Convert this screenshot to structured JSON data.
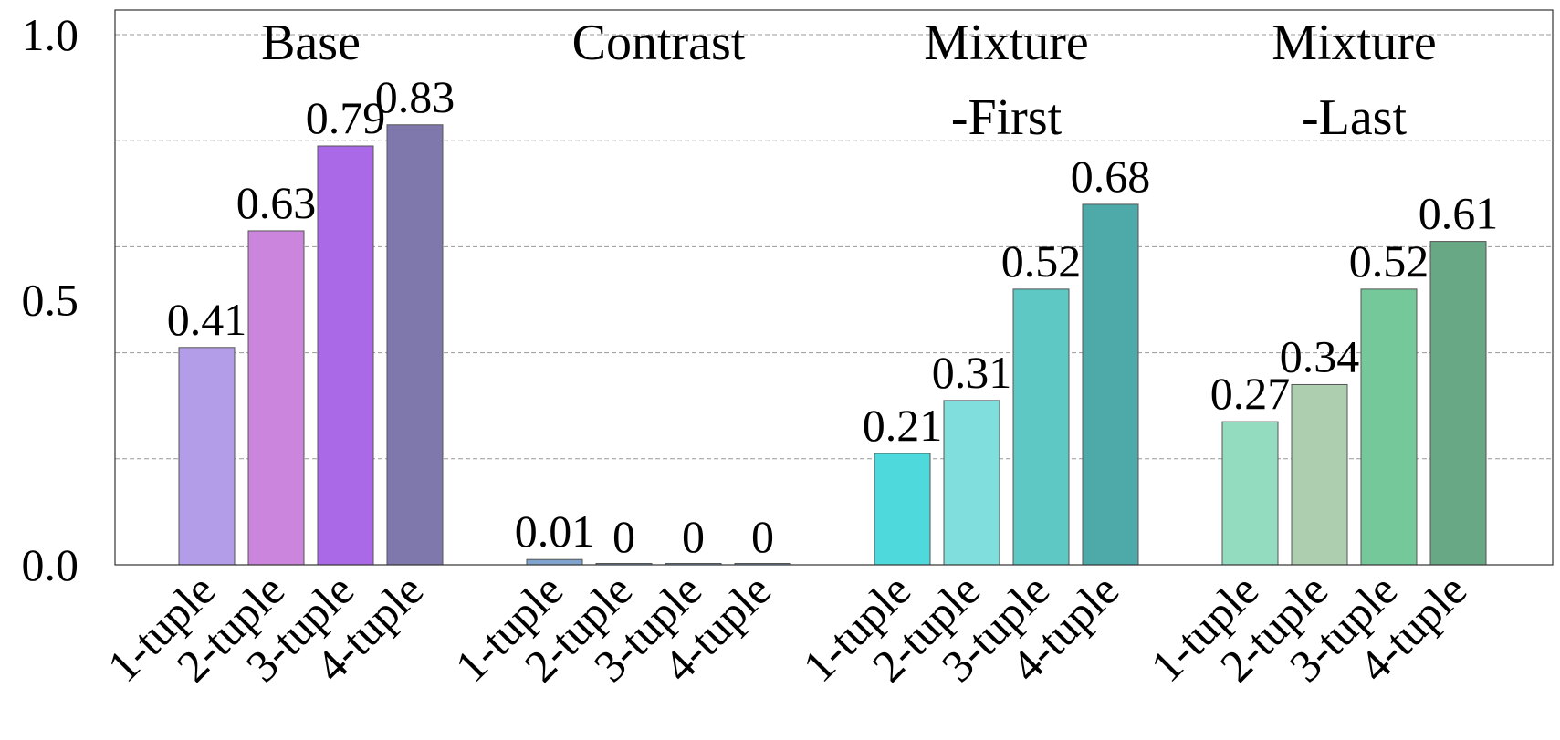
{
  "chart_data": {
    "type": "bar",
    "ylim": [
      0,
      1.05
    ],
    "yticks": [
      {
        "value": 0.0,
        "label": "0.0"
      },
      {
        "value": 0.5,
        "label": "0.5"
      },
      {
        "value": 1.0,
        "label": "1.0"
      }
    ],
    "gridlines": [
      0.2,
      0.4,
      0.6,
      0.8,
      1.0
    ],
    "grid": "dashed horizontal",
    "groups": [
      {
        "title_lines": [
          "Base"
        ],
        "categories": [
          "1-tuple",
          "2-tuple",
          "3-tuple",
          "4-tuple"
        ],
        "values": [
          0.41,
          0.63,
          0.79,
          0.83
        ],
        "labels": [
          "0.41",
          "0.63",
          "0.79",
          "0.83"
        ],
        "colors": [
          "#b39ce8",
          "#cc85dd",
          "#aa6ae8",
          "#7f78ad"
        ]
      },
      {
        "title_lines": [
          "Contrast"
        ],
        "categories": [
          "1-tuple",
          "2-tuple",
          "3-tuple",
          "4-tuple"
        ],
        "values": [
          0.01,
          0,
          0,
          0
        ],
        "labels": [
          "0.01",
          "0",
          "0",
          "0"
        ],
        "colors": [
          "#7fa3cc",
          "#7fa3cc",
          "#7fa3cc",
          "#7fa3cc"
        ]
      },
      {
        "title_lines": [
          "Mixture",
          "-First"
        ],
        "categories": [
          "1-tuple",
          "2-tuple",
          "3-tuple",
          "4-tuple"
        ],
        "values": [
          0.21,
          0.31,
          0.52,
          0.68
        ],
        "labels": [
          "0.21",
          "0.31",
          "0.52",
          "0.68"
        ],
        "colors": [
          "#4ed9dc",
          "#80dfdc",
          "#5ec8c4",
          "#4eaaa9"
        ]
      },
      {
        "title_lines": [
          "Mixture",
          "-Last"
        ],
        "categories": [
          "1-tuple",
          "2-tuple",
          "3-tuple",
          "4-tuple"
        ],
        "values": [
          0.27,
          0.34,
          0.52,
          0.61
        ],
        "labels": [
          "0.27",
          "0.34",
          "0.52",
          "0.61"
        ],
        "colors": [
          "#94dcbf",
          "#aecfaf",
          "#75c899",
          "#68a884"
        ]
      }
    ]
  }
}
